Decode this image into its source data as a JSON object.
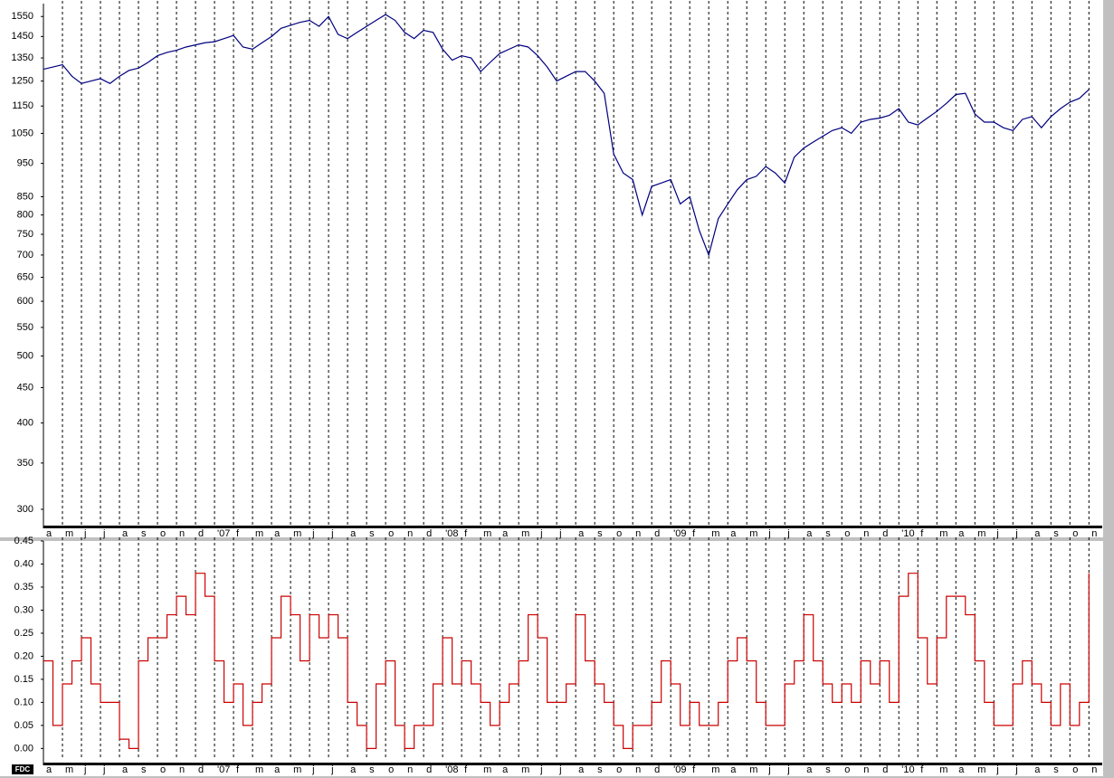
{
  "chart_data": [
    {
      "type": "line",
      "log_y": true,
      "grid": true,
      "ylim": [
        285,
        1613
      ],
      "yticks": [
        300,
        350,
        400,
        450,
        500,
        550,
        600,
        650,
        700,
        750,
        800,
        850,
        950,
        1050,
        1150,
        1250,
        1350,
        1450,
        1550
      ],
      "xlim": [
        0,
        55.7
      ],
      "xticks": [
        {
          "value": 0,
          "label": "a"
        },
        {
          "value": 1,
          "label": "m"
        },
        {
          "value": 2,
          "label": "j"
        },
        {
          "value": 3,
          "label": "j"
        },
        {
          "value": 4,
          "label": "a"
        },
        {
          "value": 5,
          "label": "s"
        },
        {
          "value": 6,
          "label": "o"
        },
        {
          "value": 7,
          "label": "n"
        },
        {
          "value": 8,
          "label": "d"
        },
        {
          "value": 9,
          "label": "'07"
        },
        {
          "value": 10,
          "label": "f"
        },
        {
          "value": 11,
          "label": "m"
        },
        {
          "value": 12,
          "label": "a"
        },
        {
          "value": 13,
          "label": "m"
        },
        {
          "value": 14,
          "label": "j"
        },
        {
          "value": 15,
          "label": "j"
        },
        {
          "value": 16,
          "label": "a"
        },
        {
          "value": 17,
          "label": "s"
        },
        {
          "value": 18,
          "label": "o"
        },
        {
          "value": 19,
          "label": "n"
        },
        {
          "value": 20,
          "label": "d"
        },
        {
          "value": 21,
          "label": "'08"
        },
        {
          "value": 22,
          "label": "f"
        },
        {
          "value": 23,
          "label": "m"
        },
        {
          "value": 24,
          "label": "a"
        },
        {
          "value": 25,
          "label": "m"
        },
        {
          "value": 26,
          "label": "j"
        },
        {
          "value": 27,
          "label": "j"
        },
        {
          "value": 28,
          "label": "a"
        },
        {
          "value": 29,
          "label": "s"
        },
        {
          "value": 30,
          "label": "o"
        },
        {
          "value": 31,
          "label": "n"
        },
        {
          "value": 32,
          "label": "d"
        },
        {
          "value": 33,
          "label": "'09"
        },
        {
          "value": 34,
          "label": "f"
        },
        {
          "value": 35,
          "label": "m"
        },
        {
          "value": 36,
          "label": "a"
        },
        {
          "value": 37,
          "label": "m"
        },
        {
          "value": 38,
          "label": "j"
        },
        {
          "value": 39,
          "label": "j"
        },
        {
          "value": 40,
          "label": "a"
        },
        {
          "value": 41,
          "label": "s"
        },
        {
          "value": 42,
          "label": "o"
        },
        {
          "value": 43,
          "label": "n"
        },
        {
          "value": 44,
          "label": "d"
        },
        {
          "value": 45,
          "label": "'10"
        },
        {
          "value": 46,
          "label": "f"
        },
        {
          "value": 47,
          "label": "m"
        },
        {
          "value": 48,
          "label": "a"
        },
        {
          "value": 49,
          "label": "m"
        },
        {
          "value": 50,
          "label": "j"
        },
        {
          "value": 51,
          "label": "j"
        },
        {
          "value": 52,
          "label": "a"
        },
        {
          "value": 53,
          "label": "s"
        },
        {
          "value": 54,
          "label": "o"
        },
        {
          "value": 55,
          "label": "n"
        }
      ],
      "x": [
        0,
        0.5,
        1,
        1.5,
        2,
        2.5,
        3,
        3.5,
        4,
        4.5,
        5,
        5.5,
        6,
        6.5,
        7,
        7.5,
        8,
        8.5,
        9,
        9.5,
        10,
        10.5,
        11,
        11.5,
        12,
        12.5,
        13,
        13.5,
        14,
        14.5,
        15,
        15.5,
        16,
        16.5,
        17,
        17.5,
        18,
        18.5,
        19,
        19.5,
        20,
        20.5,
        21,
        21.5,
        22,
        22.5,
        23,
        23.5,
        24,
        24.5,
        25,
        25.5,
        26,
        26.5,
        27,
        27.5,
        28,
        28.5,
        29,
        29.5,
        30,
        30.5,
        31,
        31.5,
        32,
        32.5,
        33,
        33.5,
        34,
        34.5,
        35,
        35.5,
        36,
        36.5,
        37,
        37.5,
        38,
        38.5,
        39,
        39.5,
        40,
        40.5,
        41,
        41.5,
        42,
        42.5,
        43,
        43.5,
        44,
        44.5,
        45,
        45.5,
        46,
        46.5,
        47,
        47.5,
        48,
        48.5,
        49,
        49.5,
        50,
        50.5,
        51,
        51.5,
        52,
        52.5,
        53,
        53.5,
        54,
        54.5,
        55
      ],
      "series": [
        {
          "color": "#000080",
          "values": [
            1300,
            1310,
            1320,
            1270,
            1240,
            1250,
            1260,
            1240,
            1270,
            1295,
            1305,
            1330,
            1360,
            1375,
            1385,
            1400,
            1410,
            1420,
            1425,
            1440,
            1455,
            1400,
            1390,
            1420,
            1450,
            1490,
            1505,
            1520,
            1530,
            1500,
            1550,
            1460,
            1440,
            1470,
            1500,
            1530,
            1560,
            1530,
            1470,
            1440,
            1480,
            1470,
            1390,
            1340,
            1360,
            1350,
            1290,
            1330,
            1370,
            1390,
            1410,
            1400,
            1360,
            1310,
            1250,
            1270,
            1290,
            1290,
            1250,
            1200,
            980,
            920,
            900,
            800,
            880,
            890,
            900,
            830,
            850,
            760,
            700,
            790,
            830,
            870,
            900,
            910,
            940,
            920,
            890,
            970,
            1000,
            1020,
            1040,
            1060,
            1070,
            1050,
            1090,
            1100,
            1105,
            1115,
            1140,
            1090,
            1080,
            1105,
            1130,
            1160,
            1195,
            1200,
            1120,
            1090,
            1090,
            1070,
            1060,
            1100,
            1110,
            1070,
            1110,
            1140,
            1165,
            1180,
            1215
          ]
        }
      ]
    },
    {
      "type": "line",
      "grid": true,
      "label": "FDC",
      "ylim": [
        -0.015,
        0.45
      ],
      "yticks": [
        {
          "value": 0,
          "label": "0.00"
        },
        {
          "value": 0.05,
          "label": "0.05"
        },
        {
          "value": 0.1,
          "label": "0.10"
        },
        {
          "value": 0.15,
          "label": "0.15"
        },
        {
          "value": 0.2,
          "label": "0.20"
        },
        {
          "value": 0.25,
          "label": "0.25"
        },
        {
          "value": 0.3,
          "label": "0.30"
        },
        {
          "value": 0.35,
          "label": "0.35"
        },
        {
          "value": 0.4,
          "label": "0.40"
        },
        {
          "value": 0.45,
          "label": "0.45"
        }
      ],
      "xlim": [
        0,
        55.7
      ],
      "xticks": [
        {
          "value": 0,
          "label": "a"
        },
        {
          "value": 1,
          "label": "m"
        },
        {
          "value": 2,
          "label": "j"
        },
        {
          "value": 3,
          "label": "j"
        },
        {
          "value": 4,
          "label": "a"
        },
        {
          "value": 5,
          "label": "s"
        },
        {
          "value": 6,
          "label": "o"
        },
        {
          "value": 7,
          "label": "n"
        },
        {
          "value": 8,
          "label": "d"
        },
        {
          "value": 9,
          "label": "'07"
        },
        {
          "value": 10,
          "label": "f"
        },
        {
          "value": 11,
          "label": "m"
        },
        {
          "value": 12,
          "label": "a"
        },
        {
          "value": 13,
          "label": "m"
        },
        {
          "value": 14,
          "label": "j"
        },
        {
          "value": 15,
          "label": "j"
        },
        {
          "value": 16,
          "label": "a"
        },
        {
          "value": 17,
          "label": "s"
        },
        {
          "value": 18,
          "label": "o"
        },
        {
          "value": 19,
          "label": "n"
        },
        {
          "value": 20,
          "label": "d"
        },
        {
          "value": 21,
          "label": "'08"
        },
        {
          "value": 22,
          "label": "f"
        },
        {
          "value": 23,
          "label": "m"
        },
        {
          "value": 24,
          "label": "a"
        },
        {
          "value": 25,
          "label": "m"
        },
        {
          "value": 26,
          "label": "j"
        },
        {
          "value": 27,
          "label": "j"
        },
        {
          "value": 28,
          "label": "a"
        },
        {
          "value": 29,
          "label": "s"
        },
        {
          "value": 30,
          "label": "o"
        },
        {
          "value": 31,
          "label": "n"
        },
        {
          "value": 32,
          "label": "d"
        },
        {
          "value": 33,
          "label": "'09"
        },
        {
          "value": 34,
          "label": "f"
        },
        {
          "value": 35,
          "label": "m"
        },
        {
          "value": 36,
          "label": "a"
        },
        {
          "value": 37,
          "label": "m"
        },
        {
          "value": 38,
          "label": "j"
        },
        {
          "value": 39,
          "label": "j"
        },
        {
          "value": 40,
          "label": "a"
        },
        {
          "value": 41,
          "label": "s"
        },
        {
          "value": 42,
          "label": "o"
        },
        {
          "value": 43,
          "label": "n"
        },
        {
          "value": 44,
          "label": "d"
        },
        {
          "value": 45,
          "label": "'10"
        },
        {
          "value": 46,
          "label": "f"
        },
        {
          "value": 47,
          "label": "m"
        },
        {
          "value": 48,
          "label": "a"
        },
        {
          "value": 49,
          "label": "m"
        },
        {
          "value": 50,
          "label": "j"
        },
        {
          "value": 51,
          "label": "j"
        },
        {
          "value": 52,
          "label": "a"
        },
        {
          "value": 53,
          "label": "s"
        },
        {
          "value": 54,
          "label": "o"
        },
        {
          "value": 55,
          "label": "n"
        }
      ],
      "x": [
        0,
        0.5,
        1,
        1.5,
        2,
        2.5,
        3,
        3.5,
        4,
        4.5,
        5,
        5.5,
        6,
        6.5,
        7,
        7.5,
        8,
        8.5,
        9,
        9.5,
        10,
        10.5,
        11,
        11.5,
        12,
        12.5,
        13,
        13.5,
        14,
        14.5,
        15,
        15.5,
        16,
        16.5,
        17,
        17.5,
        18,
        18.5,
        19,
        19.5,
        20,
        20.5,
        21,
        21.5,
        22,
        22.5,
        23,
        23.5,
        24,
        24.5,
        25,
        25.5,
        26,
        26.5,
        27,
        27.5,
        28,
        28.5,
        29,
        29.5,
        30,
        30.5,
        31,
        31.5,
        32,
        32.5,
        33,
        33.5,
        34,
        34.5,
        35,
        35.5,
        36,
        36.5,
        37,
        37.5,
        38,
        38.5,
        39,
        39.5,
        40,
        40.5,
        41,
        41.5,
        42,
        42.5,
        43,
        43.5,
        44,
        44.5,
        45,
        45.5,
        46,
        46.5,
        47,
        47.5,
        48,
        48.5,
        49,
        49.5,
        50,
        50.5,
        51,
        51.5,
        52,
        52.5,
        53,
        53.5,
        54,
        54.5,
        55
      ],
      "series": [
        {
          "color": "#cc0000",
          "step": true,
          "values": [
            0.19,
            0.05,
            0.14,
            0.19,
            0.24,
            0.14,
            0.1,
            0.1,
            0.02,
            0,
            0.19,
            0.24,
            0.24,
            0.29,
            0.33,
            0.29,
            0.38,
            0.33,
            0.19,
            0.1,
            0.14,
            0.05,
            0.1,
            0.14,
            0.24,
            0.33,
            0.29,
            0.19,
            0.29,
            0.24,
            0.29,
            0.24,
            0.1,
            0.05,
            0,
            0.14,
            0.19,
            0.05,
            0,
            0.05,
            0.05,
            0.14,
            0.24,
            0.14,
            0.19,
            0.14,
            0.1,
            0.05,
            0.1,
            0.14,
            0.19,
            0.29,
            0.24,
            0.1,
            0.1,
            0.14,
            0.29,
            0.19,
            0.14,
            0.1,
            0.05,
            0,
            0.05,
            0.05,
            0.1,
            0.19,
            0.14,
            0.05,
            0.1,
            0.05,
            0.05,
            0.1,
            0.19,
            0.24,
            0.19,
            0.1,
            0.05,
            0.05,
            0.14,
            0.19,
            0.29,
            0.19,
            0.14,
            0.1,
            0.14,
            0.1,
            0.19,
            0.14,
            0.19,
            0.1,
            0.33,
            0.38,
            0.24,
            0.14,
            0.24,
            0.33,
            0.33,
            0.29,
            0.19,
            0.1,
            0.05,
            0.05,
            0.14,
            0.19,
            0.14,
            0.1,
            0.05,
            0.14,
            0.05,
            0.1,
            0.38
          ]
        }
      ]
    }
  ]
}
